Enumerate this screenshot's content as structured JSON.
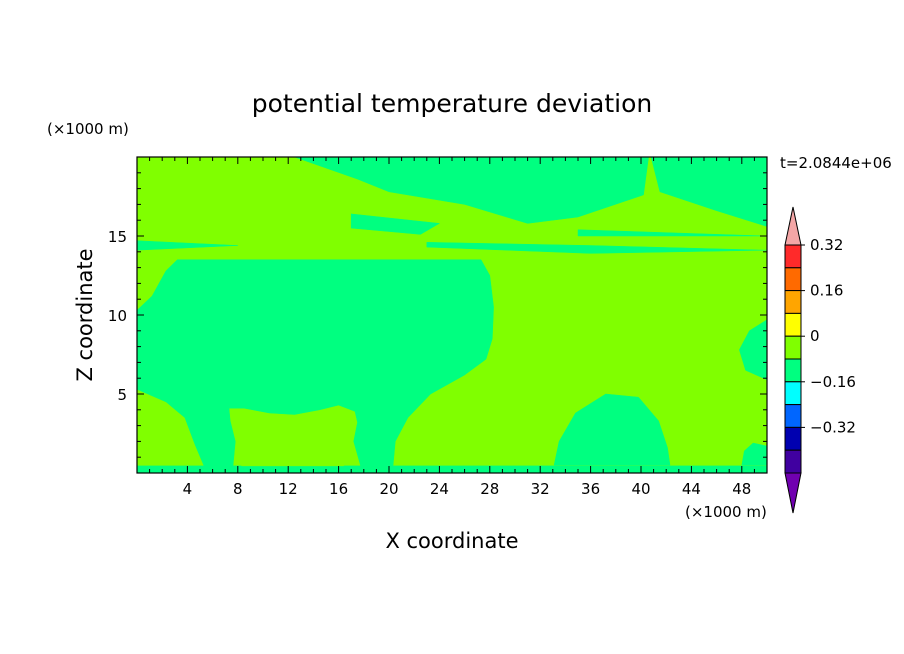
{
  "chart_data": {
    "type": "heatmap",
    "title": "potential temperature deviation",
    "xlabel": "X coordinate",
    "ylabel": "Z coordinate",
    "x_unit": "(×1000 m)",
    "y_unit": "(×1000 m)",
    "time_label": "t=2.0844e+06",
    "xlim": [
      0,
      50
    ],
    "ylim": [
      0,
      20
    ],
    "x_ticks": [
      4,
      8,
      12,
      16,
      20,
      24,
      28,
      32,
      36,
      40,
      44,
      48
    ],
    "y_ticks": [
      5,
      10,
      15
    ],
    "colorbar": {
      "labels": [
        {
          "text": "0.32",
          "value": 0.32
        },
        {
          "text": "0.16",
          "value": 0.16
        },
        {
          "text": "0",
          "value": 0
        },
        {
          "text": "−0.16",
          "value": -0.16
        },
        {
          "text": "−0.32",
          "value": -0.32
        }
      ],
      "levels": [
        {
          "value": 0.4,
          "color": "#f4a6a6"
        },
        {
          "value": 0.32,
          "color": "#ff2a2a"
        },
        {
          "value": 0.24,
          "color": "#ff6a00"
        },
        {
          "value": 0.16,
          "color": "#ffa500"
        },
        {
          "value": 0.08,
          "color": "#ffff00"
        },
        {
          "value": 0.0,
          "color": "#80ff00"
        },
        {
          "value": -0.08,
          "color": "#00ff80"
        },
        {
          "value": -0.16,
          "color": "#00ffff"
        },
        {
          "value": -0.24,
          "color": "#0066ff"
        },
        {
          "value": -0.32,
          "color": "#0000b0"
        },
        {
          "value": -0.4,
          "color": "#4000a0"
        },
        {
          "value": -0.48,
          "color": "#7000b0"
        }
      ]
    },
    "regions": [
      {
        "level": 0.0,
        "color": "#80ff00",
        "points": [
          [
            0,
            0
          ],
          [
            50,
            0
          ],
          [
            50,
            20
          ],
          [
            0,
            20
          ]
        ]
      },
      {
        "level": -0.08,
        "color": "#00ff80",
        "points": [
          [
            12.5,
            20
          ],
          [
            40.6,
            20
          ],
          [
            40.2,
            17.6
          ],
          [
            35,
            16.2
          ],
          [
            31,
            15.8
          ],
          [
            26,
            17.0
          ],
          [
            20,
            17.8
          ],
          [
            17.5,
            18.6
          ]
        ]
      },
      {
        "level": -0.08,
        "color": "#00ff80",
        "points": [
          [
            40.8,
            20
          ],
          [
            50,
            20
          ],
          [
            50,
            15.6
          ],
          [
            46,
            16.6
          ],
          [
            41.5,
            17.8
          ]
        ]
      },
      {
        "level": -0.08,
        "color": "#00ff80",
        "points": [
          [
            17,
            16.4
          ],
          [
            24,
            15.8
          ],
          [
            22.5,
            15.1
          ],
          [
            17,
            15.5
          ]
        ]
      },
      {
        "level": -0.08,
        "color": "#00ff80",
        "points": [
          [
            0,
            14.7
          ],
          [
            8,
            14.4
          ],
          [
            0,
            14.1
          ]
        ]
      },
      {
        "level": -0.08,
        "color": "#00ff80",
        "points": [
          [
            23,
            14.6
          ],
          [
            36,
            14.4
          ],
          [
            50,
            14.1
          ],
          [
            36,
            13.9
          ],
          [
            23,
            14.3
          ]
        ]
      },
      {
        "level": -0.08,
        "color": "#00ff80",
        "points": [
          [
            35,
            15.4
          ],
          [
            50,
            15.0
          ],
          [
            35,
            15.0
          ]
        ]
      },
      {
        "level": -0.08,
        "color": "#00ff80",
        "points": [
          [
            0,
            10.3
          ],
          [
            1.2,
            11.2
          ],
          [
            2.3,
            12.8
          ],
          [
            3.2,
            13.5
          ],
          [
            27.3,
            13.5
          ],
          [
            28,
            12.5
          ],
          [
            28.3,
            10.5
          ],
          [
            28.2,
            8.5
          ],
          [
            27.7,
            7.2
          ],
          [
            26,
            6.2
          ],
          [
            23.3,
            5.0
          ],
          [
            21.5,
            3.5
          ],
          [
            20.5,
            2.0
          ],
          [
            20.3,
            0.3
          ],
          [
            17.8,
            0.3
          ],
          [
            17.2,
            2.0
          ],
          [
            17.5,
            3.2
          ],
          [
            17.3,
            3.9
          ],
          [
            16,
            4.3
          ],
          [
            14.5,
            4.0
          ],
          [
            12.5,
            3.7
          ],
          [
            10.5,
            3.8
          ],
          [
            8.5,
            4.1
          ],
          [
            7.3,
            4.1
          ],
          [
            7.4,
            3.3
          ],
          [
            7.8,
            2.0
          ],
          [
            7.6,
            0.3
          ],
          [
            5.4,
            0.3
          ],
          [
            4.6,
            1.8
          ],
          [
            3.8,
            3.5
          ],
          [
            2.3,
            4.5
          ],
          [
            0,
            5.3
          ]
        ]
      },
      {
        "level": -0.08,
        "color": "#00ff80",
        "points": [
          [
            33.1,
            0.5
          ],
          [
            33.5,
            2.0
          ],
          [
            34.8,
            3.8
          ],
          [
            37.2,
            5.0
          ],
          [
            39.8,
            4.8
          ],
          [
            41.4,
            3.3
          ],
          [
            42.1,
            1.6
          ],
          [
            42.3,
            0.5
          ]
        ]
      },
      {
        "level": -0.08,
        "color": "#00ff80",
        "points": [
          [
            50,
            9.7
          ],
          [
            48.6,
            9.0
          ],
          [
            47.8,
            7.8
          ],
          [
            48.3,
            6.5
          ],
          [
            50,
            5.9
          ]
        ]
      },
      {
        "level": -0.08,
        "color": "#00ff80",
        "points": [
          [
            48.0,
            0.5
          ],
          [
            48.2,
            1.4
          ],
          [
            48.9,
            1.9
          ],
          [
            50,
            1.7
          ],
          [
            50,
            0.5
          ]
        ]
      },
      {
        "level": -0.08,
        "color": "#00ff80",
        "points": [
          [
            0,
            0
          ],
          [
            50,
            0
          ],
          [
            50,
            0.45
          ],
          [
            0,
            0.45
          ]
        ]
      }
    ],
    "patches": [
      {
        "level": 0.0,
        "color": "#80ff00",
        "points": [
          [
            8.3,
            0.45
          ],
          [
            8.1,
            1.6
          ],
          [
            8.6,
            2.4
          ],
          [
            10,
            2.7
          ],
          [
            12,
            2.7
          ],
          [
            14,
            2.5
          ],
          [
            16.3,
            2.6
          ],
          [
            16.8,
            2.0
          ],
          [
            16.4,
            0.45
          ]
        ]
      }
    ]
  }
}
